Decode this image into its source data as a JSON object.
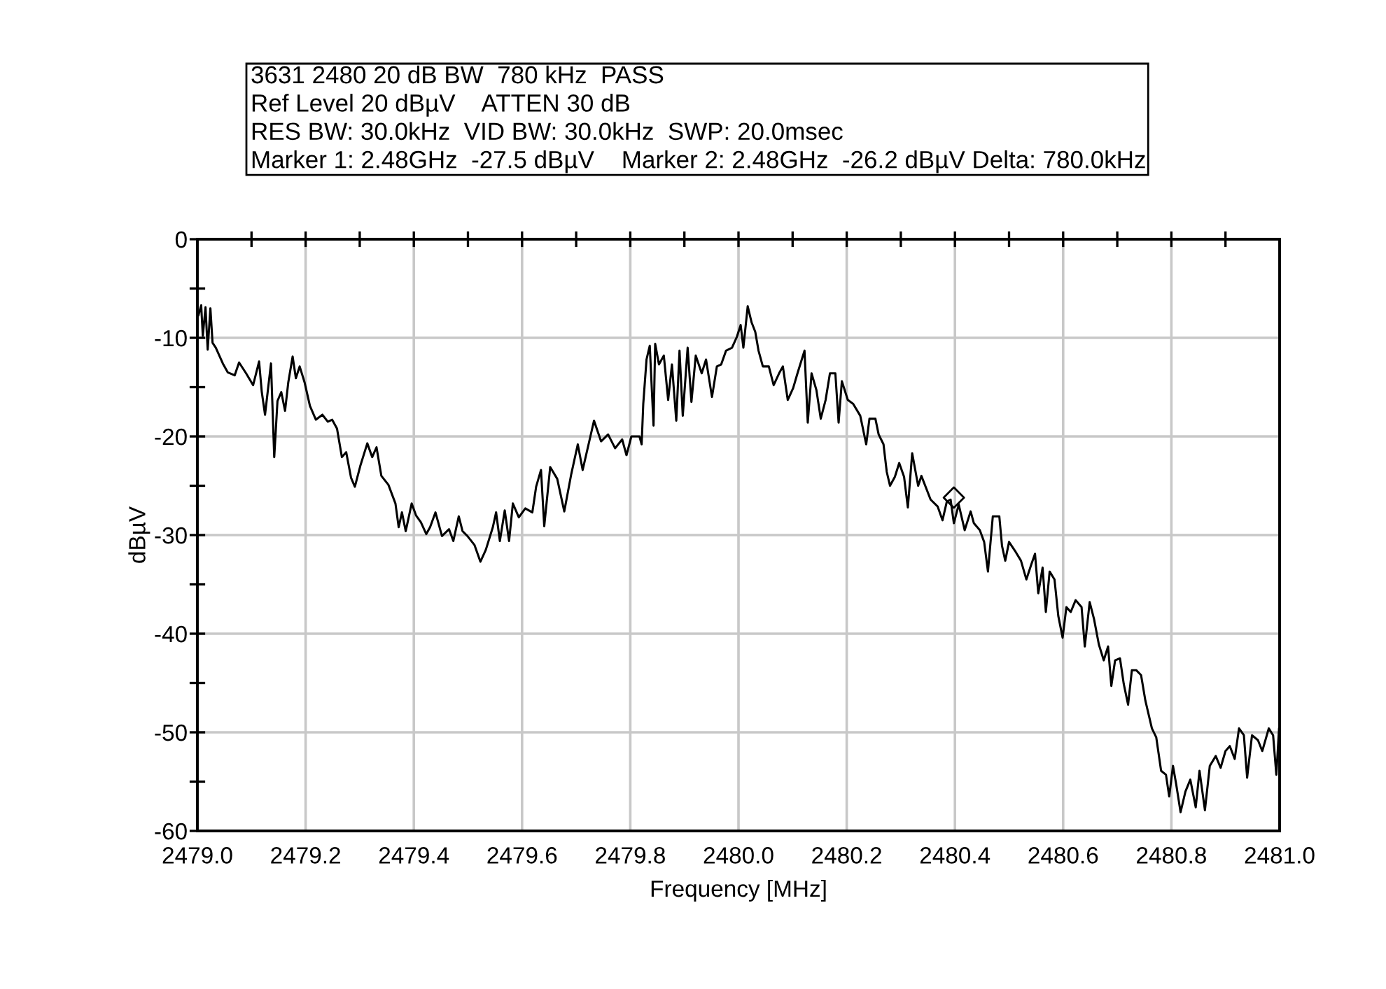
{
  "chart_data": {
    "type": "line",
    "title": "3631 2480 20 dB BW  780 kHz  PASS",
    "annotations": [
      "Ref Level 20 dBµV    ATTEN 30 dB",
      "RES BW: 30.0kHz  VID BW: 30.0kHz  SWP: 20.0msec",
      "Marker 1: 2.48GHz  -27.5 dBµV    Marker 2: 2.48GHz  -26.2 dBµV Delta: 780.0kHz"
    ],
    "xlabel": "Frequency [MHz]",
    "ylabel": "dBµV",
    "xlim": [
      2479.0,
      2481.0
    ],
    "ylim": [
      -60,
      0
    ],
    "xticks": [
      {
        "value": 2479.0,
        "label": "2479.0"
      },
      {
        "value": 2479.2,
        "label": "2479.2"
      },
      {
        "value": 2479.4,
        "label": "2479.4"
      },
      {
        "value": 2479.6,
        "label": "2479.6"
      },
      {
        "value": 2479.8,
        "label": "2479.8"
      },
      {
        "value": 2480.0,
        "label": "2480.0"
      },
      {
        "value": 2480.2,
        "label": "2480.2"
      },
      {
        "value": 2480.4,
        "label": "2480.4"
      },
      {
        "value": 2480.6,
        "label": "2480.6"
      },
      {
        "value": 2480.8,
        "label": "2480.8"
      },
      {
        "value": 2481.0,
        "label": "2481.0"
      }
    ],
    "yticks": [
      -60,
      -50,
      -40,
      -30,
      -20,
      -10,
      0
    ],
    "grid": true,
    "series": [
      {
        "color": "#000000",
        "x": [
          2479.002,
          2479.007,
          2479.01,
          2479.015,
          2479.019,
          2479.024,
          2479.028,
          2479.034,
          2479.047,
          2479.056,
          2479.069,
          2479.077,
          2479.09,
          2479.103,
          2479.114,
          2479.119,
          2479.125,
          2479.136,
          2479.142,
          2479.148,
          2479.155,
          2479.162,
          2479.168,
          2479.176,
          2479.182,
          2479.189,
          2479.198,
          2479.208,
          2479.219,
          2479.231,
          2479.241,
          2479.249,
          2479.258,
          2479.267,
          2479.275,
          2479.284,
          2479.291,
          2479.301,
          2479.314,
          2479.323,
          2479.331,
          2479.34,
          2479.353,
          2479.366,
          2479.372,
          2479.378,
          2479.385,
          2479.396,
          2479.404,
          2479.413,
          2479.423,
          2479.43,
          2479.44,
          2479.452,
          2479.465,
          2479.473,
          2479.483,
          2479.49,
          2479.499,
          2479.512,
          2479.523,
          2479.533,
          2479.546,
          2479.552,
          2479.559,
          2479.568,
          2479.576,
          2479.583,
          2479.594,
          2479.606,
          2479.619,
          2479.626,
          2479.635,
          2479.641,
          2479.652,
          2479.665,
          2479.678,
          2479.691,
          2479.703,
          2479.712,
          2479.725,
          2479.733,
          2479.746,
          2479.759,
          2479.772,
          2479.785,
          2479.793,
          2479.802,
          2479.817,
          2479.821,
          2479.824,
          2479.83,
          2479.836,
          2479.843,
          2479.846,
          2479.853,
          2479.862,
          2479.87,
          2479.877,
          2479.885,
          2479.891,
          2479.897,
          2479.906,
          2479.913,
          2479.921,
          2479.932,
          2479.94,
          2479.951,
          2479.96,
          2479.968,
          2479.977,
          2479.988,
          2479.997,
          2480.004,
          2480.009,
          2480.017,
          2480.024,
          2480.031,
          2480.037,
          2480.045,
          2480.056,
          2480.065,
          2480.075,
          2480.082,
          2480.091,
          2480.101,
          2480.109,
          2480.122,
          2480.128,
          2480.135,
          2480.144,
          2480.152,
          2480.161,
          2480.169,
          2480.179,
          2480.185,
          2480.191,
          2480.202,
          2480.212,
          2480.225,
          2480.236,
          2480.242,
          2480.253,
          2480.259,
          2480.268,
          2480.274,
          2480.28,
          2480.289,
          2480.297,
          2480.306,
          2480.313,
          2480.321,
          2480.332,
          2480.338,
          2480.355,
          2480.368,
          2480.377,
          2480.385,
          2480.392,
          2480.398,
          2480.407,
          2480.418,
          2480.429,
          2480.435,
          2480.446,
          2480.454,
          2480.461,
          2480.47,
          2480.482,
          2480.487,
          2480.493,
          2480.5,
          2480.511,
          2480.522,
          2480.532,
          2480.541,
          2480.548,
          2480.554,
          2480.562,
          2480.568,
          2480.575,
          2480.584,
          2480.591,
          2480.599,
          2480.606,
          2480.614,
          2480.623,
          2480.634,
          2480.64,
          2480.649,
          2480.657,
          2480.666,
          2480.675,
          2480.683,
          2480.689,
          2480.696,
          2480.705,
          2480.712,
          2480.72,
          2480.727,
          2480.735,
          2480.744,
          2480.752,
          2480.764,
          2480.772,
          2480.781,
          2480.79,
          2480.796,
          2480.803,
          2480.809,
          2480.817,
          2480.826,
          2480.835,
          2480.845,
          2480.852,
          2480.862,
          2480.871,
          2480.882,
          2480.891,
          2480.9,
          2480.908,
          2480.917,
          2480.925,
          2480.934,
          2480.94,
          2480.949,
          2480.96,
          2480.968,
          2480.98,
          2480.988,
          2480.994,
          2480.999,
          2481.0
        ],
        "values": [
          -7.7,
          -6.7,
          -9.8,
          -6.9,
          -11.2,
          -7.0,
          -10.5,
          -11.0,
          -12.6,
          -13.5,
          -13.8,
          -12.5,
          -13.6,
          -14.8,
          -12.4,
          -15.5,
          -17.8,
          -12.6,
          -22.1,
          -16.4,
          -15.5,
          -17.4,
          -14.5,
          -11.9,
          -14.1,
          -12.9,
          -14.5,
          -16.9,
          -18.3,
          -17.8,
          -18.5,
          -18.3,
          -19.2,
          -22.1,
          -21.6,
          -24.2,
          -25.1,
          -23.0,
          -20.7,
          -22.1,
          -21.1,
          -24.0,
          -24.9,
          -26.8,
          -29.2,
          -27.7,
          -29.6,
          -26.8,
          -28.0,
          -28.7,
          -29.9,
          -29.2,
          -27.7,
          -30.1,
          -29.4,
          -30.6,
          -28.1,
          -29.6,
          -30.1,
          -31.0,
          -32.7,
          -31.5,
          -29.2,
          -27.7,
          -30.6,
          -27.5,
          -30.6,
          -26.8,
          -28.2,
          -27.3,
          -27.7,
          -25.1,
          -23.4,
          -29.1,
          -23.1,
          -24.3,
          -27.6,
          -23.8,
          -20.8,
          -23.4,
          -20.3,
          -18.4,
          -20.5,
          -19.8,
          -21.2,
          -20.3,
          -21.9,
          -20.0,
          -20.0,
          -20.8,
          -16.7,
          -12.2,
          -10.8,
          -18.9,
          -10.6,
          -12.7,
          -11.8,
          -16.3,
          -12.7,
          -18.4,
          -11.3,
          -17.9,
          -11.0,
          -16.5,
          -11.8,
          -13.6,
          -12.2,
          -16.0,
          -12.9,
          -12.7,
          -11.3,
          -11.0,
          -9.9,
          -8.7,
          -11.0,
          -6.8,
          -8.4,
          -9.4,
          -11.3,
          -12.9,
          -12.9,
          -14.8,
          -13.6,
          -12.9,
          -16.3,
          -15.1,
          -13.6,
          -11.3,
          -18.6,
          -13.6,
          -15.3,
          -18.2,
          -16.3,
          -13.6,
          -13.6,
          -18.6,
          -14.4,
          -16.3,
          -16.7,
          -17.9,
          -20.8,
          -18.2,
          -18.2,
          -19.8,
          -20.8,
          -23.6,
          -25.0,
          -24.1,
          -22.7,
          -24.1,
          -27.2,
          -21.7,
          -25.0,
          -24.0,
          -26.4,
          -27.1,
          -28.5,
          -26.6,
          -26.4,
          -28.8,
          -26.9,
          -29.5,
          -27.6,
          -28.8,
          -29.5,
          -30.7,
          -33.7,
          -28.1,
          -28.1,
          -31.1,
          -32.6,
          -30.7,
          -31.6,
          -32.6,
          -34.5,
          -33.0,
          -31.9,
          -35.9,
          -33.3,
          -37.8,
          -33.7,
          -34.5,
          -38.2,
          -40.4,
          -37.3,
          -37.8,
          -36.6,
          -37.3,
          -41.3,
          -36.8,
          -38.5,
          -41.1,
          -42.7,
          -41.3,
          -45.3,
          -42.7,
          -42.5,
          -45.1,
          -47.2,
          -43.7,
          -43.7,
          -44.2,
          -46.8,
          -49.6,
          -50.5,
          -53.9,
          -54.3,
          -56.5,
          -53.4,
          -55.3,
          -58.1,
          -56.0,
          -54.8,
          -57.6,
          -53.9,
          -57.9,
          -53.4,
          -52.4,
          -53.6,
          -51.9,
          -51.4,
          -52.7,
          -49.6,
          -50.3,
          -54.6,
          -50.3,
          -50.8,
          -51.9,
          -49.6,
          -50.3,
          -54.3,
          -49.6,
          -51.0
        ]
      },
      {
        "type": "scatter",
        "marker": "diamond",
        "color": "#000000",
        "x": [
          2480.398
        ],
        "values": [
          -26.2
        ]
      }
    ]
  }
}
